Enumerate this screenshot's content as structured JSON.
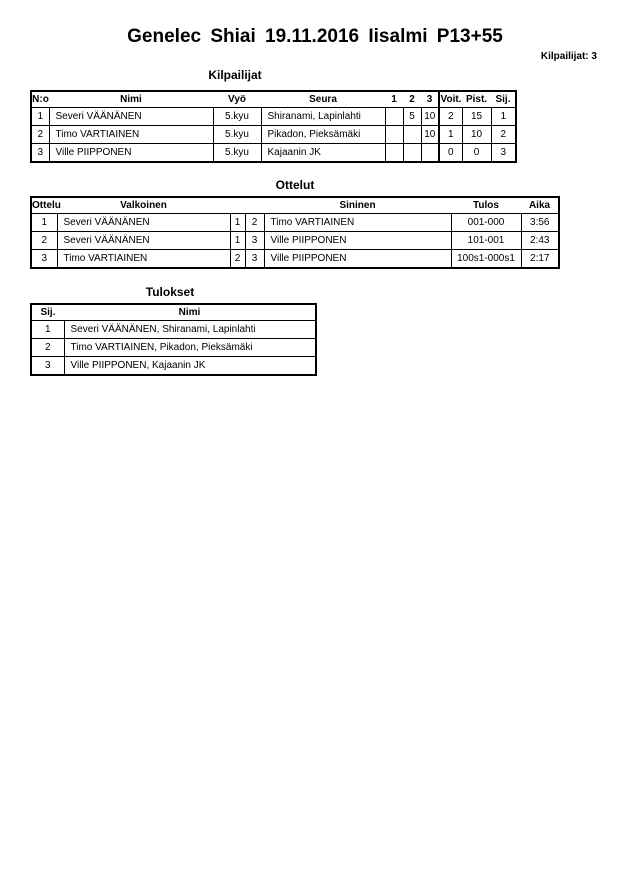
{
  "header": {
    "title": "Genelec Shiai  19.11.2016  Iisalmi   P13+55",
    "competitor_count": "Kilpailijat: 3"
  },
  "competitors": {
    "title": "Kilpailijat",
    "columns": [
      "N:o",
      "Nimi",
      "Vyö",
      "Seura",
      "1",
      "2",
      "3",
      "Voit.",
      "Pist.",
      "Sij."
    ],
    "rows": [
      [
        "1",
        "Severi VÄÄNÄNEN",
        "5.kyu",
        "Shiranami, Lapinlahti",
        "",
        "5",
        "10",
        "2",
        "15",
        "1"
      ],
      [
        "2",
        "Timo VARTIAINEN",
        "5.kyu",
        "Pikadon, Pieksämäki",
        "",
        "",
        "10",
        "1",
        "10",
        "2"
      ],
      [
        "3",
        "Ville PIIPPONEN",
        "5.kyu",
        "Kajaanin JK",
        "",
        "",
        "",
        "0",
        "0",
        "3"
      ]
    ]
  },
  "matches": {
    "title": "Ottelut",
    "columns": [
      "Ottelu",
      "Valkoinen",
      "",
      "",
      "Sininen",
      "Tulos",
      "Aika"
    ],
    "rows": [
      [
        "1",
        "Severi VÄÄNÄNEN",
        "1",
        "2",
        "Timo VARTIAINEN",
        "001-000",
        "3:56"
      ],
      [
        "2",
        "Severi VÄÄNÄNEN",
        "1",
        "3",
        "Ville PIIPPONEN",
        "101-001",
        "2:43"
      ],
      [
        "3",
        "Timo VARTIAINEN",
        "2",
        "3",
        "Ville PIIPPONEN",
        "100s1-000s1",
        "2:17"
      ]
    ]
  },
  "results": {
    "title": "Tulokset",
    "columns": [
      "Sij.",
      "Nimi"
    ],
    "rows": [
      [
        "1",
        "Severi VÄÄNÄNEN, Shiranami, Lapinlahti"
      ],
      [
        "2",
        "Timo VARTIAINEN, Pikadon, Pieksämäki"
      ],
      [
        "3",
        "Ville PIIPPONEN, Kajaanin JK"
      ]
    ]
  }
}
